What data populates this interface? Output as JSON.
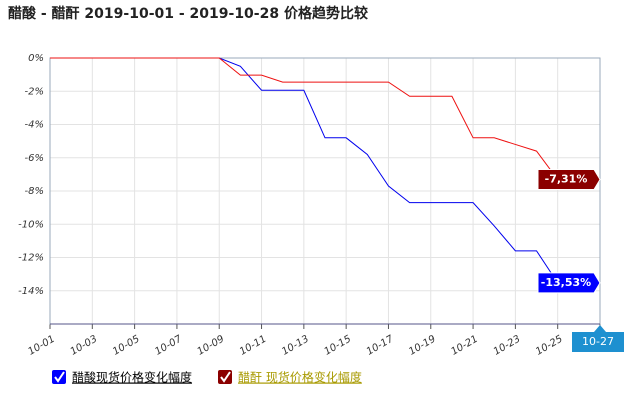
{
  "chart_data": {
    "type": "line",
    "title": "醋酸 - 醋酐 2019-10-01 - 2019-10-28 价格趋势比较",
    "categories": [
      "10-01",
      null,
      "10-03",
      null,
      "10-05",
      null,
      "10-07",
      null,
      "10-09",
      null,
      "10-11",
      null,
      "10-13",
      null,
      "10-15",
      null,
      "10-17",
      null,
      "10-19",
      null,
      "10-21",
      null,
      "10-23",
      null,
      "10-25",
      null,
      "10-27"
    ],
    "ylim": [
      -16,
      0
    ],
    "yticks": [
      {
        "value": 0,
        "label": "0%"
      },
      {
        "value": -2,
        "label": "-2%"
      },
      {
        "value": -4,
        "label": "-4%"
      },
      {
        "value": -6,
        "label": "-6%"
      },
      {
        "value": -8,
        "label": "-8%"
      },
      {
        "value": -10,
        "label": "-10%"
      },
      {
        "value": -12,
        "label": "-12%"
      },
      {
        "value": -14,
        "label": "-14%"
      }
    ],
    "grid": true,
    "series": [
      {
        "name": "醋酸现货价格变化幅度",
        "color": "#0000ee",
        "label_color": "#0000ff",
        "legend_text_color": "#000000",
        "values": [
          0,
          0,
          0,
          0,
          0,
          0,
          0,
          0,
          0,
          -0.5,
          -1.94,
          -1.94,
          -1.94,
          -4.8,
          -4.8,
          -5.8,
          -7.7,
          -8.7,
          -8.7,
          -8.7,
          -8.7,
          -10.1,
          -11.6,
          -11.6,
          -13.53,
          -13.53,
          -13.53
        ],
        "value_labels": [
          null,
          null,
          null,
          null,
          null,
          null,
          null,
          null,
          null,
          null,
          null,
          null,
          null,
          null,
          null,
          null,
          null,
          null,
          null,
          null,
          null,
          null,
          null,
          null,
          null,
          null,
          "-13,53%"
        ]
      },
      {
        "name": "醋酐 现货价格变化幅度",
        "color": "#ee1111",
        "label_color": "#8b0000",
        "legend_text_color": "#a89a00",
        "values": [
          0,
          0,
          0,
          0,
          0,
          0,
          0,
          0,
          0,
          -1.03,
          -1.03,
          -1.45,
          -1.45,
          -1.45,
          -1.45,
          -1.45,
          -1.45,
          -2.3,
          -2.3,
          -2.3,
          -4.8,
          -4.8,
          -5.2,
          -5.6,
          -7.31,
          -7.31,
          -7.31
        ],
        "value_labels": [
          null,
          null,
          null,
          null,
          null,
          null,
          null,
          null,
          null,
          null,
          null,
          null,
          null,
          null,
          null,
          null,
          null,
          null,
          null,
          null,
          null,
          null,
          null,
          null,
          null,
          null,
          "-7,31%"
        ]
      }
    ]
  }
}
